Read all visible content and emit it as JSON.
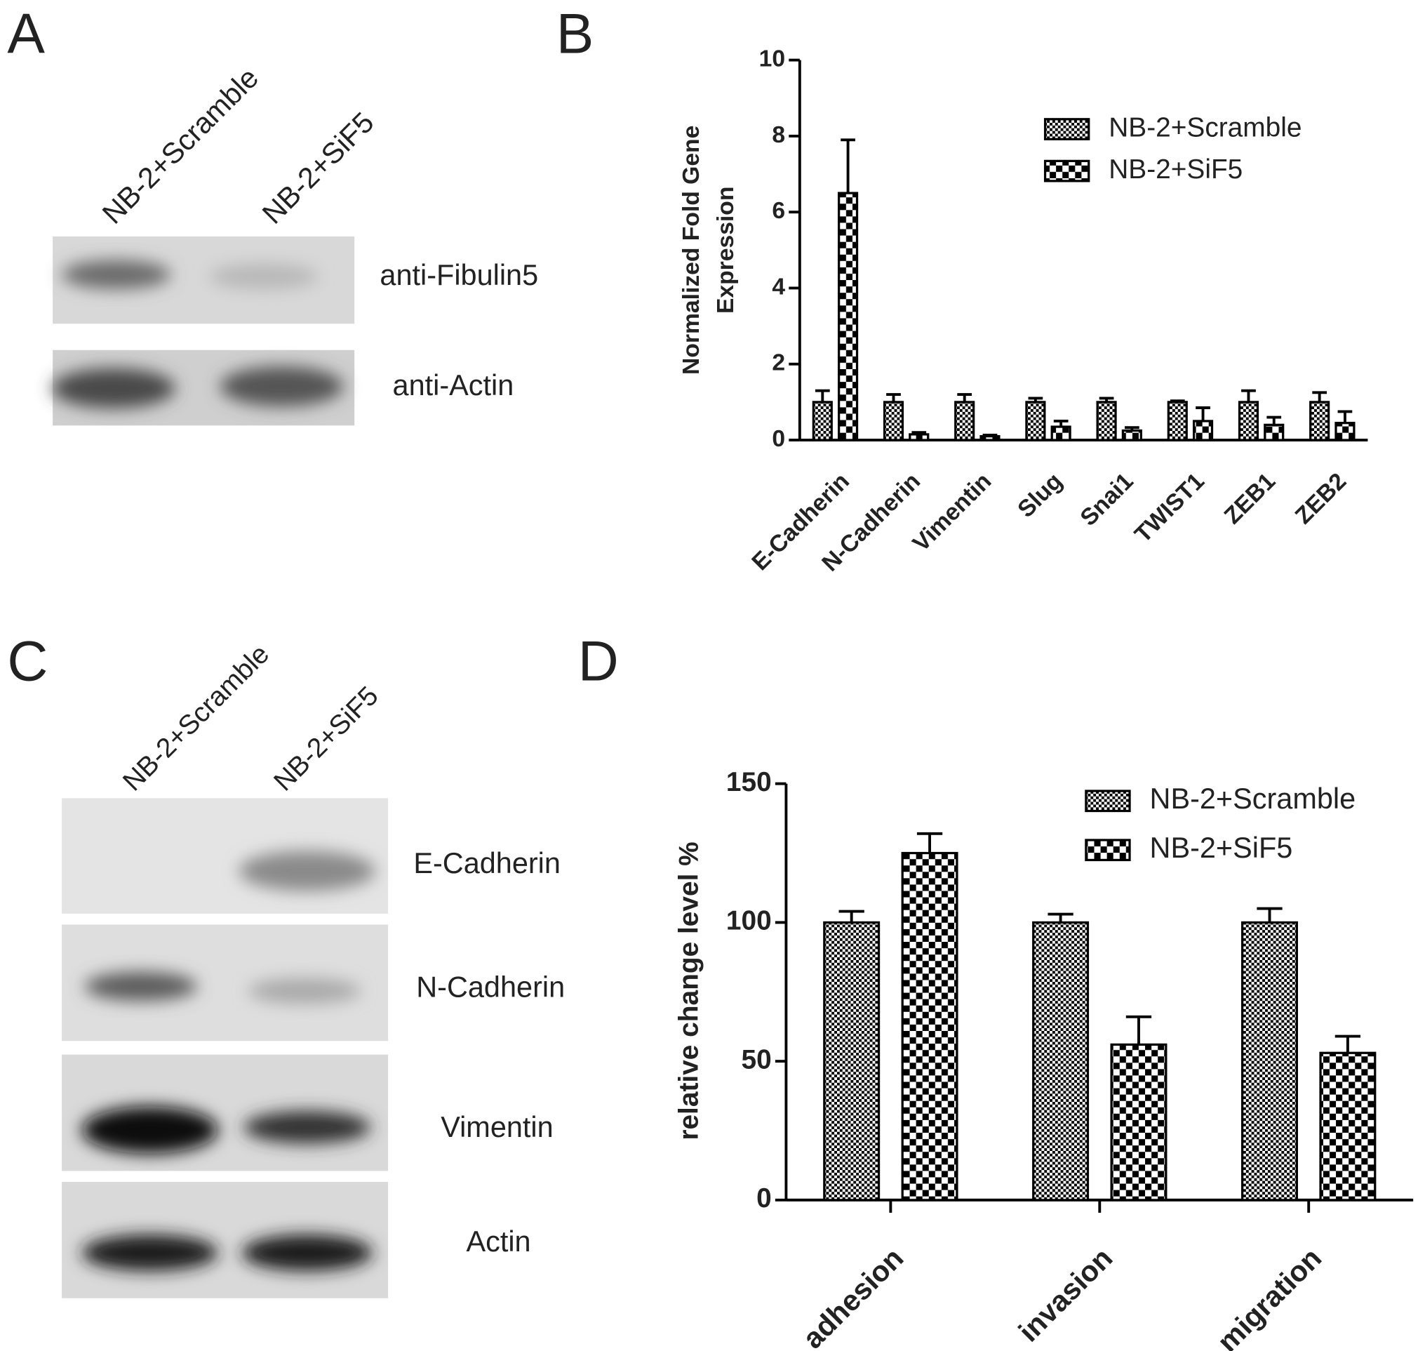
{
  "chart_data": [
    {
      "type": "bar",
      "panel": "B",
      "ylabel": [
        "Normalized Fold Gene",
        "Expression"
      ],
      "categories": [
        "E-Cadherin",
        "N-Cadherin",
        "Vimentin",
        "Slug",
        "Snai1",
        "TWIST1",
        "ZEB1",
        "ZEB2"
      ],
      "series": [
        {
          "name": "NB-2+Scramble",
          "color": "#000000",
          "hatch": "fine-check",
          "values": [
            1.0,
            1.0,
            1.0,
            1.0,
            1.0,
            1.0,
            1.0,
            1.0
          ],
          "errors": [
            0.3,
            0.2,
            0.2,
            0.1,
            0.1,
            0.03,
            0.3,
            0.25
          ]
        },
        {
          "name": "NB-2+SiF5",
          "color": "#000000",
          "hatch": "coarse-check",
          "values": [
            6.5,
            0.15,
            0.1,
            0.35,
            0.25,
            0.5,
            0.4,
            0.45
          ],
          "errors": [
            1.4,
            0.05,
            0.03,
            0.15,
            0.08,
            0.35,
            0.2,
            0.3
          ]
        }
      ],
      "ylim": [
        0,
        10
      ],
      "yticks": [
        0,
        2,
        4,
        6,
        8,
        10
      ],
      "legend": "upper right"
    },
    {
      "type": "bar",
      "panel": "D",
      "ylabel": [
        "relative change level %"
      ],
      "categories": [
        "adhesion",
        "invasion",
        "migration"
      ],
      "series": [
        {
          "name": "NB-2+Scramble",
          "color": "#000000",
          "hatch": "fine-check",
          "values": [
            100,
            100,
            100
          ],
          "errors": [
            4,
            3,
            5
          ]
        },
        {
          "name": "NB-2+SiF5",
          "color": "#000000",
          "hatch": "coarse-check",
          "values": [
            125,
            56,
            53
          ],
          "errors": [
            7,
            10,
            6
          ]
        }
      ],
      "ylim": [
        0,
        150
      ],
      "yticks": [
        0,
        50,
        100,
        150
      ],
      "legend": "upper right"
    }
  ],
  "blots": [
    {
      "panel": "A",
      "lanes": [
        "NB-2+Scramble",
        "NB-2+SiF5"
      ],
      "rows": [
        "anti-Fibulin5",
        "anti-Actin"
      ]
    },
    {
      "panel": "C",
      "lanes": [
        "NB-2+Scramble",
        "NB-2+SiF5"
      ],
      "rows": [
        "E-Cadherin",
        "N-Cadherin",
        "Vimentin",
        "Actin"
      ]
    }
  ]
}
